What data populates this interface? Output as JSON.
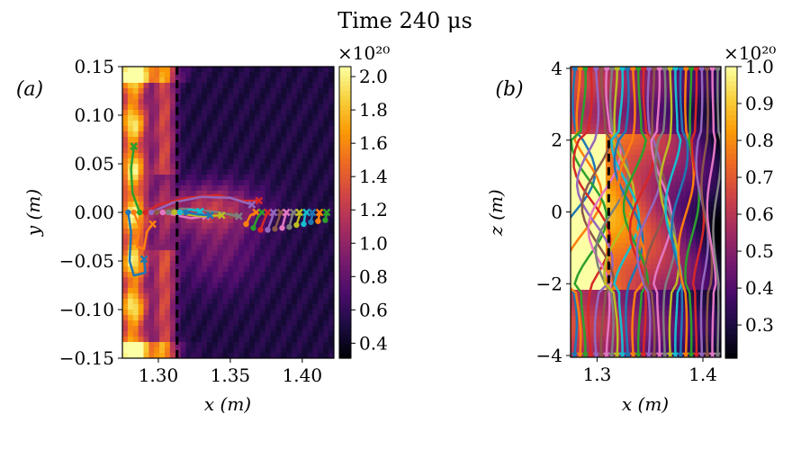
{
  "figure": {
    "title": "Time 240 μs"
  },
  "colors": {
    "dashed_line": "#000000",
    "traj_palette": [
      "#1f77b4",
      "#ff7f0e",
      "#2ca02c",
      "#d62728",
      "#9467bd",
      "#8c564b",
      "#e377c2",
      "#7f7f7f",
      "#bcbd22",
      "#17becf"
    ],
    "inferno_stops": [
      "#000004",
      "#1b0c41",
      "#4a0c6b",
      "#781c6d",
      "#a52c60",
      "#cf4446",
      "#ed6925",
      "#fb9b06",
      "#f7d13d",
      "#fcffa4"
    ]
  },
  "chart_data": [
    {
      "panel_label": "(a)",
      "type": "heatmap",
      "xlabel": "x (m)",
      "ylabel": "y (m)",
      "xlim": [
        1.275,
        1.422
      ],
      "ylim": [
        -0.15,
        0.15
      ],
      "xticks": [
        1.3,
        1.35,
        1.4
      ],
      "xtick_labels": [
        "1.30",
        "1.35",
        "1.40"
      ],
      "yticks": [
        -0.15,
        -0.1,
        -0.05,
        0.0,
        0.05,
        0.1,
        0.15
      ],
      "ytick_labels": [
        "−0.15",
        "−0.10",
        "−0.05",
        "0.00",
        "0.05",
        "0.10",
        "0.15"
      ],
      "dashed_x": 1.313,
      "colorbar": {
        "exponent_label": "×10²⁰",
        "vmin": 0.31,
        "vmax": 2.06,
        "ticks": [
          0.4,
          0.6,
          0.8,
          1.0,
          1.2,
          1.4,
          1.6,
          1.8,
          2.0
        ],
        "tick_labels": [
          "0.4",
          "0.6",
          "0.8",
          "1.0",
          "1.2",
          "1.4",
          "1.6",
          "1.8",
          "2.0"
        ]
      },
      "series_description": "particle trajectories start at y=0 (circle) and end at an x marker",
      "trajectories": [
        {
          "points": [
            [
              1.279,
              0.0
            ],
            [
              1.281,
              -0.02
            ],
            [
              1.28,
              -0.05
            ],
            [
              1.283,
              -0.065
            ],
            [
              1.291,
              -0.062
            ],
            [
              1.29,
              -0.048
            ]
          ]
        },
        {
          "points": [
            [
              1.283,
              0.0
            ],
            [
              1.287,
              -0.015
            ],
            [
              1.285,
              -0.035
            ],
            [
              1.29,
              -0.038
            ],
            [
              1.292,
              -0.02
            ],
            [
              1.296,
              -0.012
            ]
          ]
        },
        {
          "points": [
            [
              1.287,
              0.0
            ],
            [
              1.282,
              0.02
            ],
            [
              1.281,
              0.045
            ],
            [
              1.283,
              0.068
            ]
          ]
        },
        {
          "points": [
            [
              1.291,
              0.0
            ],
            [
              1.3,
              0.008
            ],
            [
              1.32,
              0.015
            ],
            [
              1.34,
              0.018
            ],
            [
              1.358,
              0.012
            ],
            [
              1.37,
              0.012
            ]
          ]
        },
        {
          "points": [
            [
              1.295,
              0.0
            ],
            [
              1.31,
              0.01
            ],
            [
              1.33,
              0.016
            ],
            [
              1.35,
              0.015
            ],
            [
              1.365,
              0.008
            ]
          ]
        },
        {
          "points": [
            [
              1.299,
              0.0
            ],
            [
              1.31,
              0.004
            ],
            [
              1.325,
              0.003
            ],
            [
              1.34,
              0.0
            ],
            [
              1.352,
              -0.003
            ]
          ]
        },
        {
          "points": [
            [
              1.303,
              0.0
            ],
            [
              1.312,
              -0.003
            ],
            [
              1.323,
              -0.006
            ],
            [
              1.333,
              -0.004
            ]
          ]
        },
        {
          "points": [
            [
              1.307,
              0.0
            ],
            [
              1.316,
              0.004
            ],
            [
              1.327,
              0.003
            ],
            [
              1.342,
              0.0
            ],
            [
              1.356,
              -0.004
            ]
          ]
        },
        {
          "points": [
            [
              1.311,
              0.0
            ],
            [
              1.32,
              -0.002
            ],
            [
              1.33,
              -0.004
            ],
            [
              1.344,
              -0.003
            ]
          ]
        },
        {
          "points": [
            [
              1.315,
              0.0
            ],
            [
              1.322,
              0.003
            ],
            [
              1.329,
              0.001
            ]
          ]
        },
        {
          "points": [
            [
              1.319,
              0.0
            ],
            [
              1.327,
              -0.002
            ],
            [
              1.336,
              -0.003
            ]
          ]
        },
        {
          "points": [
            [
              1.361,
              -0.012
            ],
            [
              1.364,
              -0.003
            ],
            [
              1.368,
              0.0
            ]
          ]
        },
        {
          "points": [
            [
              1.366,
              -0.016
            ],
            [
              1.369,
              -0.005
            ],
            [
              1.372,
              0.0
            ]
          ]
        },
        {
          "points": [
            [
              1.371,
              -0.018
            ],
            [
              1.374,
              -0.006
            ],
            [
              1.376,
              0.0
            ]
          ]
        },
        {
          "points": [
            [
              1.376,
              -0.018
            ],
            [
              1.379,
              -0.006
            ],
            [
              1.38,
              0.0
            ]
          ]
        },
        {
          "points": [
            [
              1.381,
              -0.017
            ],
            [
              1.384,
              -0.005
            ],
            [
              1.385,
              0.0
            ]
          ]
        },
        {
          "points": [
            [
              1.386,
              -0.016
            ],
            [
              1.388,
              -0.005
            ],
            [
              1.389,
              0.0
            ]
          ]
        },
        {
          "points": [
            [
              1.391,
              -0.015
            ],
            [
              1.393,
              -0.004
            ],
            [
              1.394,
              0.0
            ]
          ]
        },
        {
          "points": [
            [
              1.396,
              -0.013
            ],
            [
              1.398,
              -0.004
            ],
            [
              1.398,
              0.0
            ]
          ]
        },
        {
          "points": [
            [
              1.401,
              -0.012
            ],
            [
              1.402,
              -0.003
            ],
            [
              1.403,
              0.0
            ]
          ]
        },
        {
          "points": [
            [
              1.406,
              -0.01
            ],
            [
              1.407,
              -0.003
            ],
            [
              1.407,
              0.0
            ]
          ]
        },
        {
          "points": [
            [
              1.411,
              -0.009
            ],
            [
              1.412,
              -0.002
            ],
            [
              1.412,
              0.0
            ]
          ]
        },
        {
          "points": [
            [
              1.416,
              -0.008
            ],
            [
              1.417,
              -0.002
            ],
            [
              1.417,
              0.0
            ]
          ]
        }
      ]
    },
    {
      "panel_label": "(b)",
      "type": "heatmap",
      "xlabel": "x (m)",
      "ylabel": "z (m)",
      "xlim": [
        1.275,
        1.417
      ],
      "ylim": [
        -4.05,
        4.05
      ],
      "xticks": [
        1.3,
        1.4
      ],
      "xtick_labels": [
        "1.3",
        "1.4"
      ],
      "yticks": [
        -4,
        -2,
        0,
        2,
        4
      ],
      "ytick_labels": [
        "−4",
        "−2",
        "0",
        "2",
        "4"
      ],
      "dashed_x": 1.311,
      "dashed_ylim": [
        -2,
        2
      ],
      "colorbar": {
        "exponent_label": "×10²⁰",
        "vmin": 0.21,
        "vmax": 1.0,
        "ticks": [
          0.3,
          0.4,
          0.5,
          0.6,
          0.7,
          0.8,
          0.9,
          1.0
        ],
        "tick_labels": [
          "0.3",
          "0.4",
          "0.5",
          "0.6",
          "0.7",
          "0.8",
          "0.9",
          "1.0"
        ]
      },
      "series_description": "field-line traces from z=+4 to z=-4 at x = start values",
      "field_lines_x_start": [
        1.279,
        1.284,
        1.289,
        1.294,
        1.299,
        1.304,
        1.309,
        1.314,
        1.319,
        1.324,
        1.329,
        1.334,
        1.339,
        1.344,
        1.349,
        1.354,
        1.359,
        1.364,
        1.369,
        1.374,
        1.379,
        1.384,
        1.389,
        1.394,
        1.399,
        1.404,
        1.409,
        1.414
      ]
    }
  ]
}
